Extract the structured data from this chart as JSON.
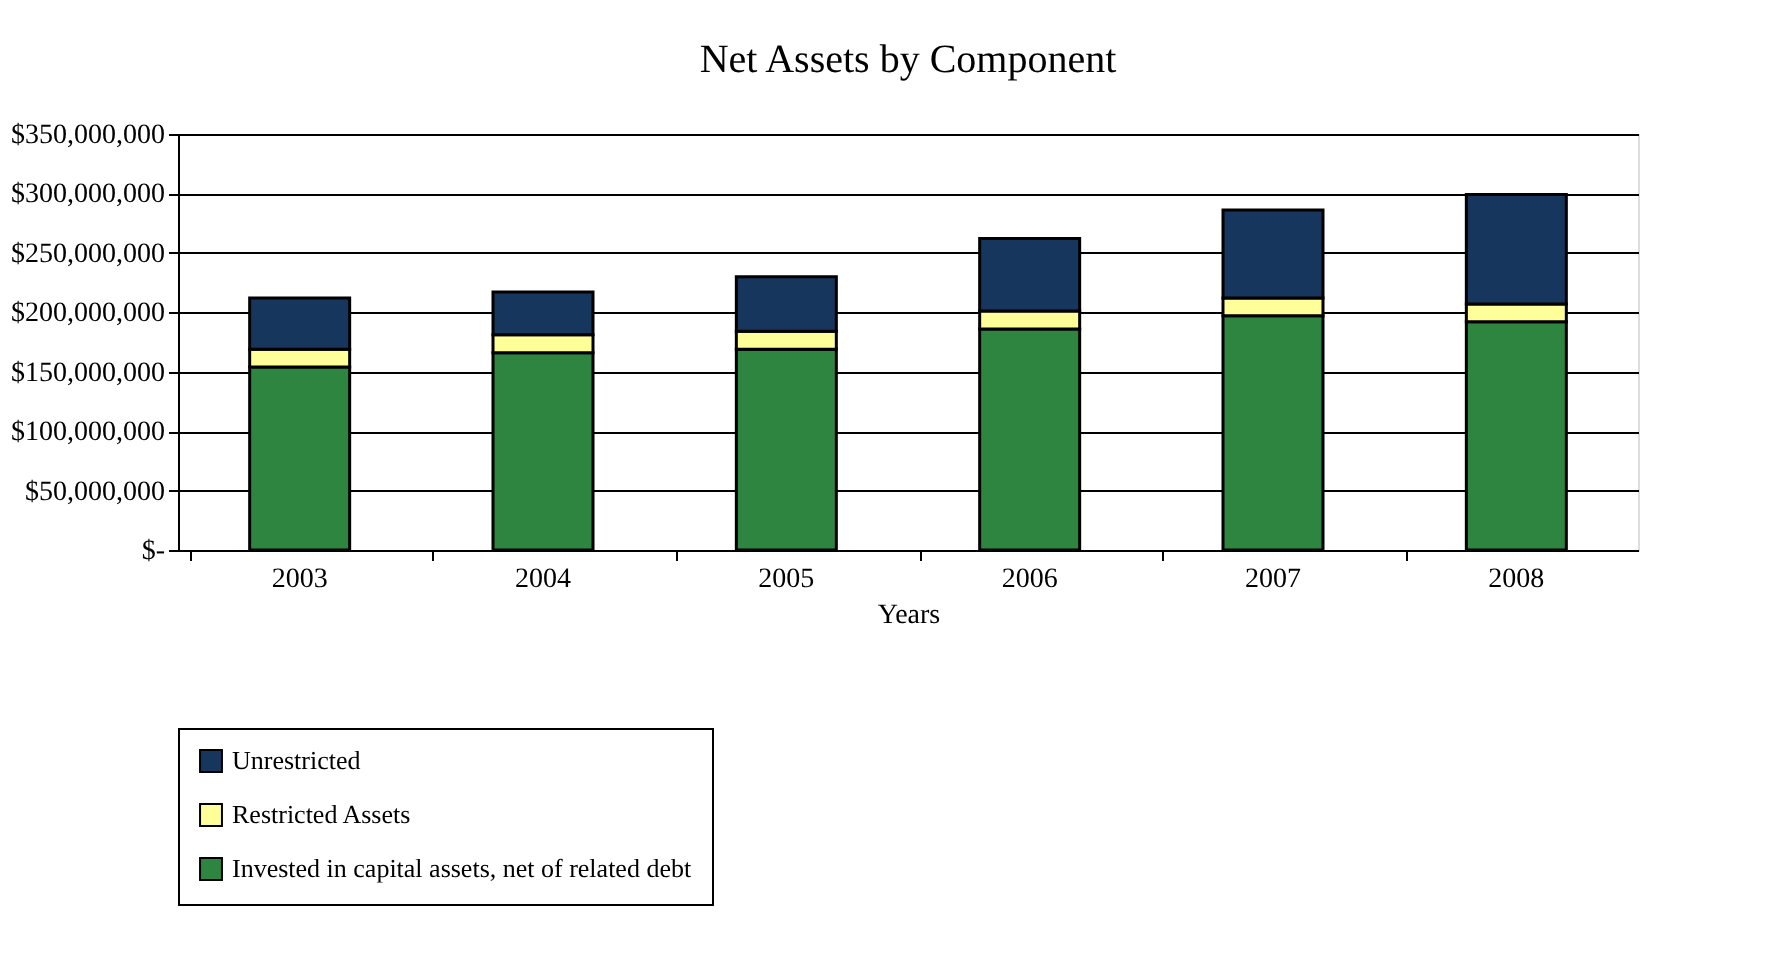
{
  "chart_data": {
    "type": "bar",
    "title": "Net Assets by Component",
    "xlabel": "Years",
    "stacked": true,
    "categories": [
      "2003",
      "2004",
      "2005",
      "2006",
      "2007",
      "2008"
    ],
    "series": [
      {
        "name": "Invested in capital assets, net of related debt",
        "color": "#2e8540",
        "values": [
          154000000,
          166000000,
          169000000,
          186000000,
          197000000,
          192000000
        ]
      },
      {
        "name": "Restricted Assets",
        "color": "#ffff99",
        "values": [
          15000000,
          15000000,
          15000000,
          15000000,
          15000000,
          15000000
        ]
      },
      {
        "name": "Unrestricted",
        "color": "#17365d",
        "values": [
          43000000,
          36000000,
          46000000,
          61000000,
          74000000,
          92000000
        ]
      }
    ],
    "ylim": [
      0,
      350000000
    ],
    "yticks": [
      {
        "value": 0,
        "label": "$-"
      },
      {
        "value": 50000000,
        "label": "$50,000,000"
      },
      {
        "value": 100000000,
        "label": "$100,000,000"
      },
      {
        "value": 150000000,
        "label": "$150,000,000"
      },
      {
        "value": 200000000,
        "label": "$200,000,000"
      },
      {
        "value": 250000000,
        "label": "$250,000,000"
      },
      {
        "value": 300000000,
        "label": "$300,000,000"
      },
      {
        "value": 350000000,
        "label": "$350,000,000"
      }
    ],
    "grid": "y",
    "legend": "bottom"
  }
}
